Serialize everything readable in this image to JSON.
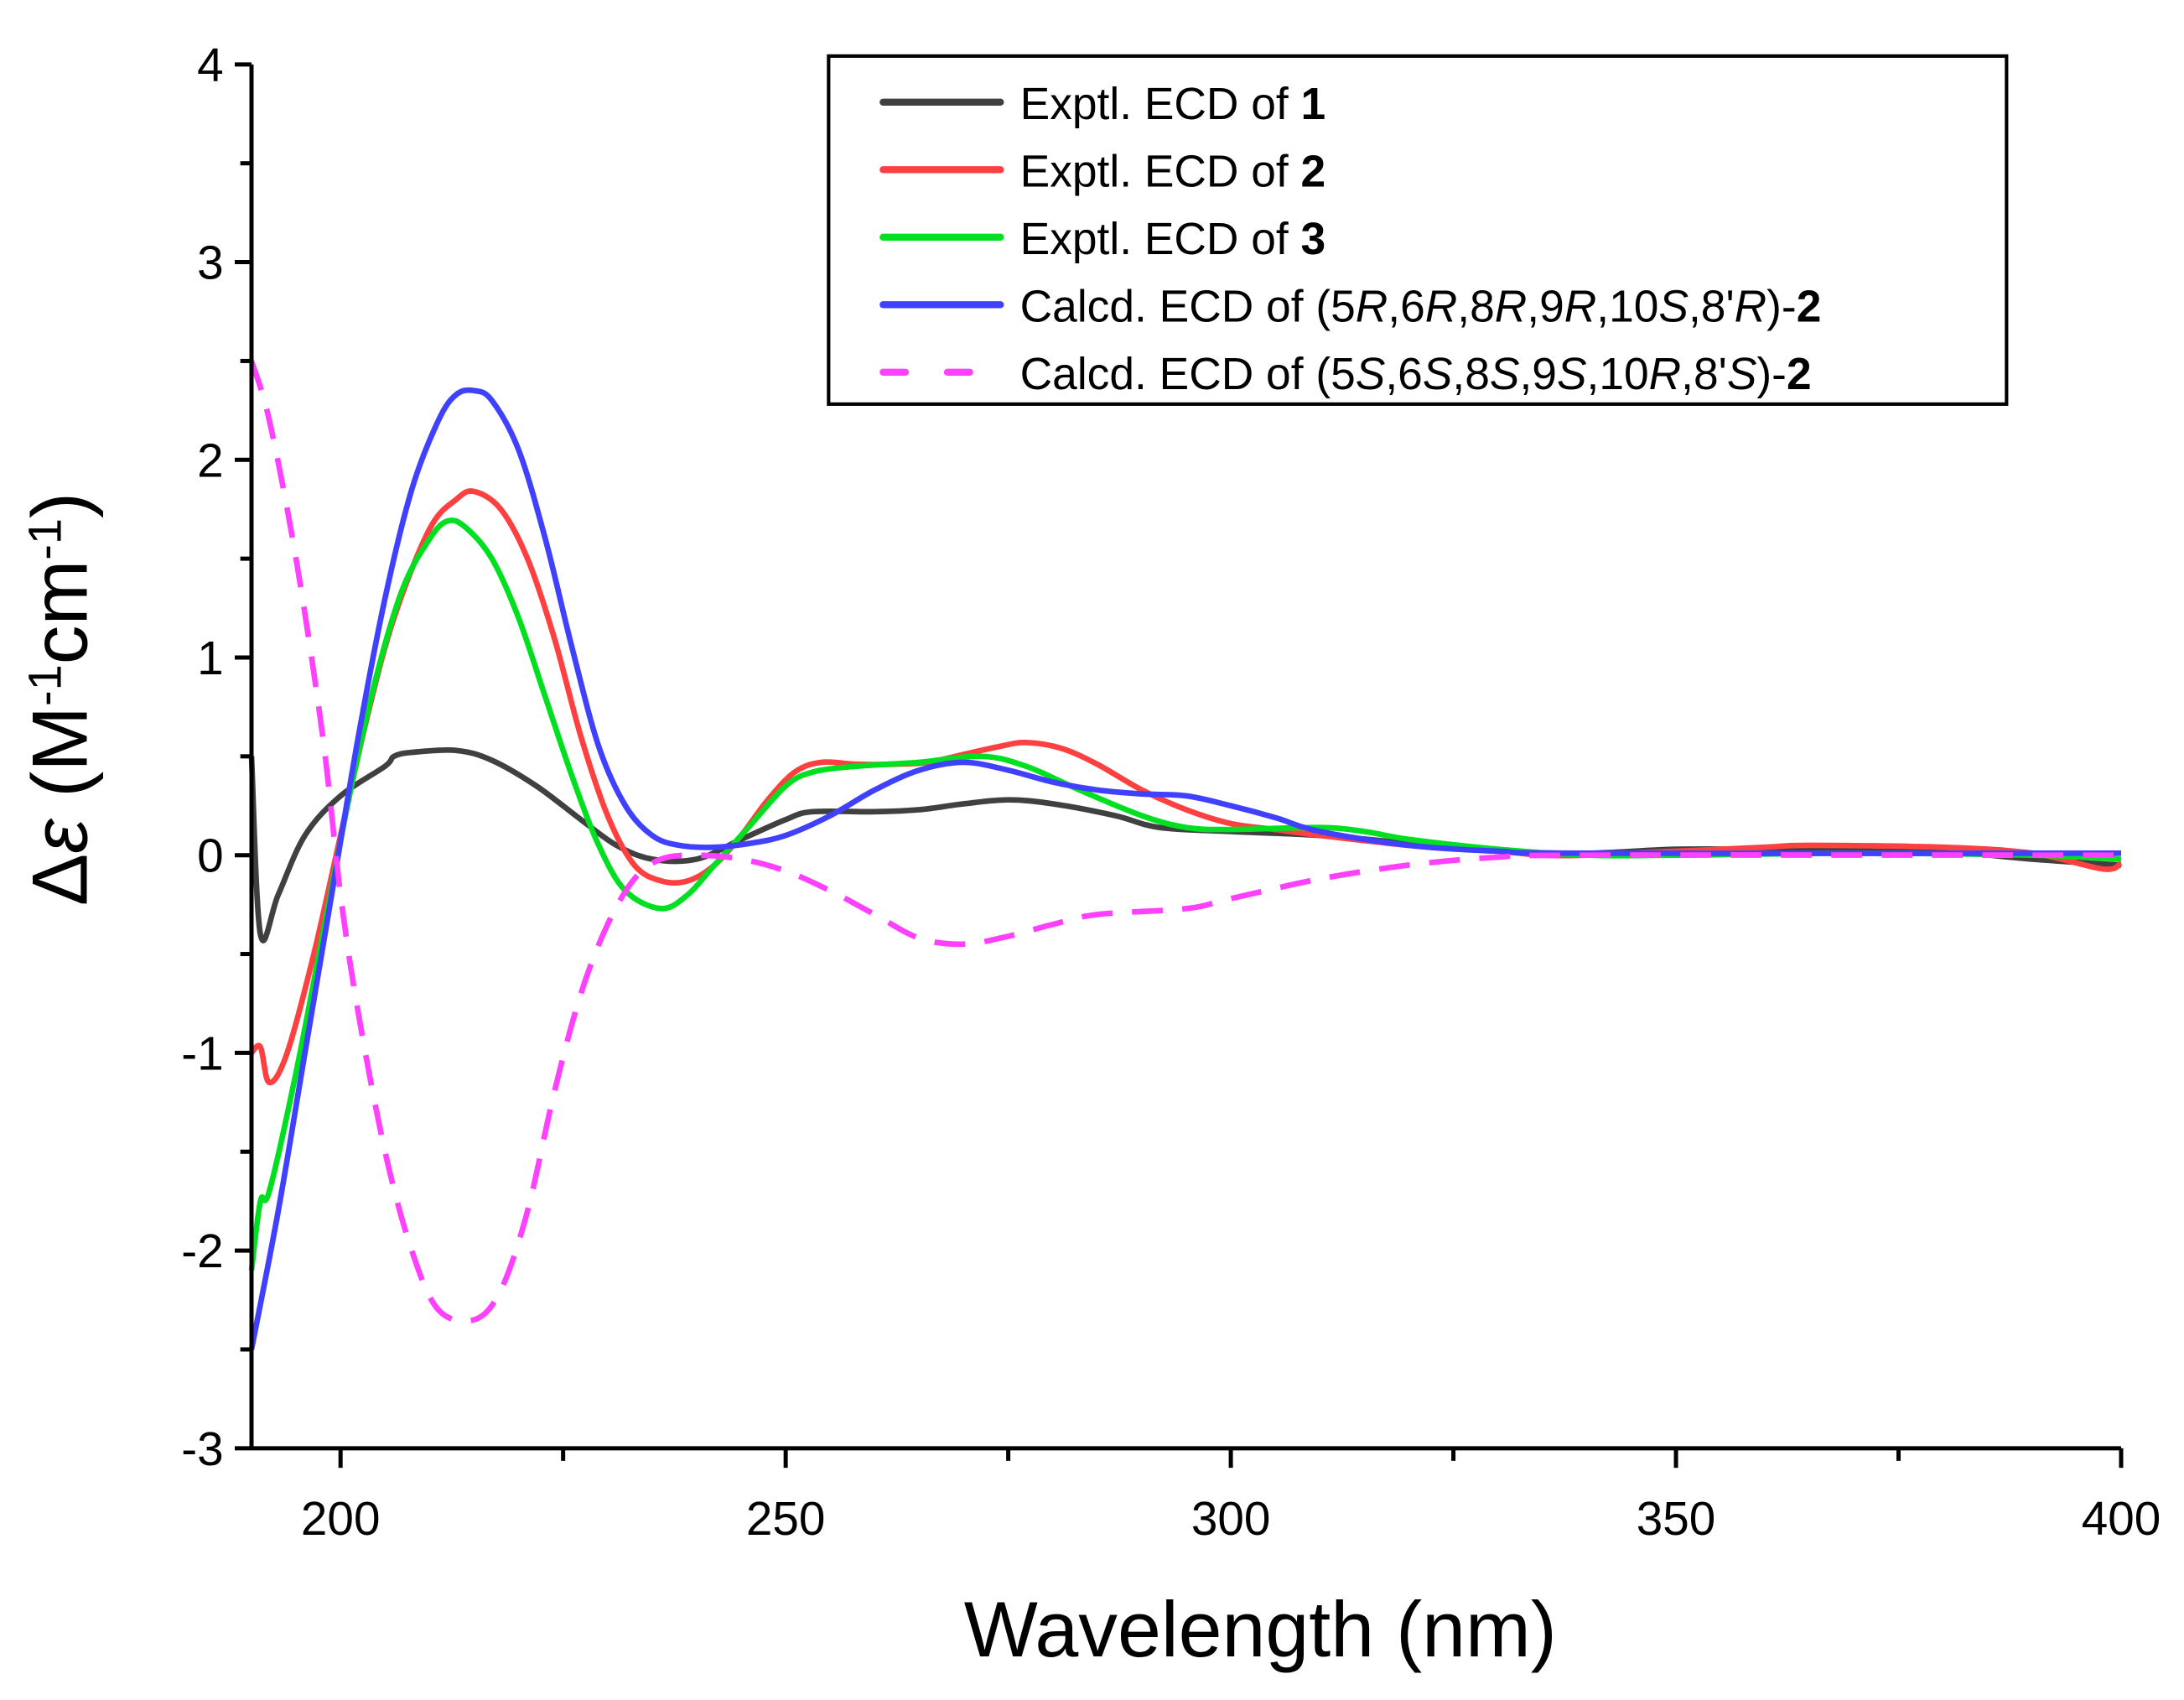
{
  "chart_data": {
    "type": "line",
    "title": "",
    "xlabel": "Wavelength (nm)",
    "ylabel_segments": [
      {
        "t": "Δ",
        "s": "n"
      },
      {
        "t": "ε",
        "s": "i"
      },
      {
        "t": " (M",
        "s": "n"
      },
      {
        "t": "-1",
        "s": "sup"
      },
      {
        "t": "cm",
        "s": "n"
      },
      {
        "t": "-1",
        "s": "sup"
      },
      {
        "t": ")",
        "s": "n"
      }
    ],
    "xlim": [
      190,
      400
    ],
    "ylim": [
      -3,
      4
    ],
    "xticks": [
      200,
      250,
      300,
      350,
      400
    ],
    "yticks": [
      -3,
      -2,
      -1,
      0,
      1,
      2,
      3,
      4
    ],
    "grid": false,
    "legend_position": "top-right",
    "series": [
      {
        "name_segments": [
          {
            "t": "Exptl. ECD of ",
            "s": "n"
          },
          {
            "t": "1",
            "s": "b"
          }
        ],
        "color": "#404040",
        "dash": false,
        "x": [
          190,
          191,
          193,
          196,
          200,
          205,
          206,
          208,
          213,
          217,
          222,
          227,
          231,
          235,
          240,
          245,
          250,
          253,
          260,
          265,
          270,
          275,
          280,
          287,
          292,
          300,
          310,
          320,
          330,
          340,
          350,
          360,
          370,
          380,
          390,
          400
        ],
        "y": [
          0.5,
          -0.4,
          -0.2,
          0.1,
          0.3,
          0.45,
          0.5,
          0.52,
          0.53,
          0.48,
          0.35,
          0.18,
          0.05,
          -0.02,
          -0.02,
          0.08,
          0.18,
          0.22,
          0.22,
          0.23,
          0.26,
          0.28,
          0.26,
          0.2,
          0.14,
          0.12,
          0.1,
          0.06,
          0.02,
          0.01,
          0.03,
          0.03,
          0.03,
          0.02,
          -0.02,
          -0.05
        ]
      },
      {
        "name_segments": [
          {
            "t": "Exptl. ECD of ",
            "s": "n"
          },
          {
            "t": "2",
            "s": "b"
          }
        ],
        "color": "#ff4040",
        "dash": false,
        "x": [
          190,
          191,
          192,
          194,
          197,
          200,
          203,
          206,
          210,
          213,
          215,
          218,
          221,
          224,
          227,
          230,
          233,
          236,
          239,
          242,
          245,
          248,
          251,
          254,
          258,
          262,
          266,
          270,
          274,
          277,
          281,
          285,
          290,
          295,
          300,
          305,
          310,
          320,
          330,
          335,
          340,
          350,
          360,
          365,
          380,
          390,
          398,
          400
        ],
        "y": [
          -1.0,
          -0.97,
          -1.15,
          -1.0,
          -0.5,
          0.1,
          0.7,
          1.2,
          1.65,
          1.8,
          1.84,
          1.75,
          1.5,
          1.1,
          0.6,
          0.2,
          -0.05,
          -0.13,
          -0.13,
          -0.05,
          0.1,
          0.28,
          0.42,
          0.47,
          0.46,
          0.46,
          0.47,
          0.51,
          0.55,
          0.57,
          0.54,
          0.46,
          0.33,
          0.23,
          0.16,
          0.13,
          0.1,
          0.05,
          0.02,
          0.0,
          0.0,
          0.02,
          0.04,
          0.05,
          0.04,
          0.01,
          -0.07,
          -0.04
        ]
      },
      {
        "name_segments": [
          {
            "t": "Exptl. ECD of ",
            "s": "n"
          },
          {
            "t": "3",
            "s": "b"
          }
        ],
        "color": "#00e020",
        "dash": false,
        "x": [
          190,
          191,
          192,
          195,
          198,
          201,
          204,
          207,
          210,
          212,
          214,
          217,
          220,
          223,
          226,
          229,
          232,
          236,
          239,
          242,
          246,
          250,
          253,
          258,
          265,
          272,
          277,
          283,
          290,
          295,
          300,
          310,
          315,
          320,
          330,
          340,
          350,
          370,
          390,
          400
        ],
        "y": [
          -2.1,
          -1.75,
          -1.7,
          -1.1,
          -0.4,
          0.3,
          0.9,
          1.35,
          1.6,
          1.69,
          1.66,
          1.5,
          1.2,
          0.8,
          0.4,
          0.05,
          -0.18,
          -0.27,
          -0.2,
          -0.05,
          0.15,
          0.35,
          0.42,
          0.45,
          0.47,
          0.5,
          0.45,
          0.33,
          0.2,
          0.14,
          0.13,
          0.14,
          0.12,
          0.08,
          0.03,
          0.0,
          0.0,
          0.01,
          0.0,
          -0.02
        ]
      },
      {
        "name_segments": [
          {
            "t": "Calcd. ECD of (5",
            "s": "n"
          },
          {
            "t": "R",
            "s": "i"
          },
          {
            "t": ",6",
            "s": "n"
          },
          {
            "t": "R",
            "s": "i"
          },
          {
            "t": ",8",
            "s": "n"
          },
          {
            "t": "R",
            "s": "i"
          },
          {
            "t": ",9",
            "s": "n"
          },
          {
            "t": "R",
            "s": "i"
          },
          {
            "t": ",10",
            "s": "n"
          },
          {
            "t": "S",
            "s": "i"
          },
          {
            "t": ",8'",
            "s": "n"
          },
          {
            "t": "R",
            "s": "i"
          },
          {
            "t": ")-",
            "s": "n"
          },
          {
            "t": "2",
            "s": "b"
          }
        ],
        "color": "#4040ff",
        "dash": false,
        "x": [
          190,
          193,
          196,
          199,
          202,
          205,
          208,
          211,
          213,
          215,
          217,
          220,
          223,
          226,
          229,
          232,
          235,
          238,
          242,
          246,
          250,
          255,
          260,
          265,
          270,
          275,
          280,
          285,
          290,
          295,
          300,
          305,
          310,
          320,
          330,
          340,
          400
        ],
        "y": [
          -2.5,
          -1.8,
          -1.0,
          -0.2,
          0.6,
          1.3,
          1.85,
          2.2,
          2.33,
          2.35,
          2.3,
          2.05,
          1.6,
          1.05,
          0.55,
          0.25,
          0.1,
          0.05,
          0.04,
          0.06,
          0.1,
          0.2,
          0.33,
          0.43,
          0.47,
          0.43,
          0.37,
          0.33,
          0.31,
          0.3,
          0.25,
          0.19,
          0.12,
          0.05,
          0.02,
          0.01,
          0.01
        ]
      },
      {
        "name_segments": [
          {
            "t": "Calcd. ECD of (5",
            "s": "n"
          },
          {
            "t": "S",
            "s": "i"
          },
          {
            "t": ",6",
            "s": "n"
          },
          {
            "t": "S",
            "s": "i"
          },
          {
            "t": ",8",
            "s": "n"
          },
          {
            "t": "S",
            "s": "i"
          },
          {
            "t": ",9",
            "s": "n"
          },
          {
            "t": "S",
            "s": "i"
          },
          {
            "t": ",10",
            "s": "n"
          },
          {
            "t": "R",
            "s": "i"
          },
          {
            "t": ",8'",
            "s": "n"
          },
          {
            "t": "S",
            "s": "i"
          },
          {
            "t": ")-",
            "s": "n"
          },
          {
            "t": "2",
            "s": "b"
          }
        ],
        "color": "#ff40ff",
        "dash": true,
        "x": [
          190,
          192,
          195,
          198,
          200,
          202,
          205,
          208,
          211,
          215,
          218,
          221,
          224,
          227,
          230,
          233,
          236,
          240,
          245,
          250,
          255,
          260,
          265,
          270,
          275,
          280,
          285,
          295,
          300,
          310,
          320,
          330,
          340,
          400
        ],
        "y": [
          2.5,
          2.2,
          1.5,
          0.6,
          -0.2,
          -0.8,
          -1.5,
          -2.0,
          -2.3,
          -2.35,
          -2.2,
          -1.8,
          -1.2,
          -0.7,
          -0.35,
          -0.12,
          -0.02,
          0.0,
          -0.02,
          -0.08,
          -0.18,
          -0.3,
          -0.42,
          -0.45,
          -0.41,
          -0.35,
          -0.3,
          -0.27,
          -0.22,
          -0.12,
          -0.05,
          -0.01,
          0.0,
          0.0
        ]
      }
    ]
  }
}
